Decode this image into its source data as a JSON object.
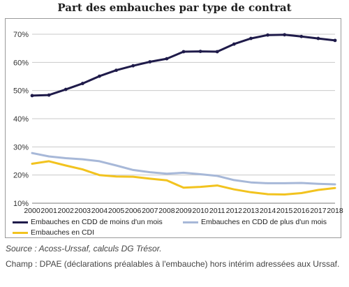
{
  "chart_data": {
    "type": "line",
    "title": "Part des embauches par type de contrat",
    "x": [
      "2000",
      "2001",
      "2002",
      "2003",
      "2004",
      "2005",
      "2006",
      "2007",
      "2008",
      "2009",
      "2010",
      "2011",
      "2012",
      "2013",
      "2014",
      "2015",
      "2016",
      "2017",
      "2018"
    ],
    "yticks": [
      "70%",
      "60%",
      "50%",
      "40%",
      "30%",
      "20%",
      "10%"
    ],
    "ylim": [
      10,
      70
    ],
    "grid": true,
    "legend_position": "bottom",
    "series": [
      {
        "name": "Embauches en CDD de moins d'un mois",
        "color": "#1f1b4a",
        "marker": "dot",
        "values": [
          48.2,
          48.4,
          50.4,
          52.5,
          55.1,
          57.2,
          58.8,
          60.2,
          61.3,
          63.8,
          63.9,
          63.8,
          66.5,
          68.5,
          69.7,
          69.8,
          69.2,
          68.5,
          67.8
        ]
      },
      {
        "name": "Embauches en CDD de plus d'un mois",
        "color": "#a7b8d8",
        "values": [
          27.8,
          26.6,
          26.0,
          25.6,
          24.9,
          23.4,
          21.8,
          21.0,
          20.5,
          20.8,
          20.3,
          19.7,
          18.2,
          17.4,
          17.1,
          17.1,
          17.2,
          16.9,
          16.7
        ]
      },
      {
        "name": "Embauches en CDI",
        "color": "#f2c31f",
        "values": [
          24.0,
          24.9,
          23.4,
          22.0,
          20.0,
          19.5,
          19.4,
          18.7,
          18.1,
          15.5,
          15.8,
          16.3,
          14.9,
          13.9,
          13.2,
          13.1,
          13.6,
          14.7,
          15.4
        ]
      }
    ]
  },
  "notes": {
    "source": "Source : Acoss-Urssaf, calculs DG Trésor.",
    "scope": "Champ : DPAE (déclarations préalables à l'embauche) hors intérim adressées aux Urssaf."
  }
}
